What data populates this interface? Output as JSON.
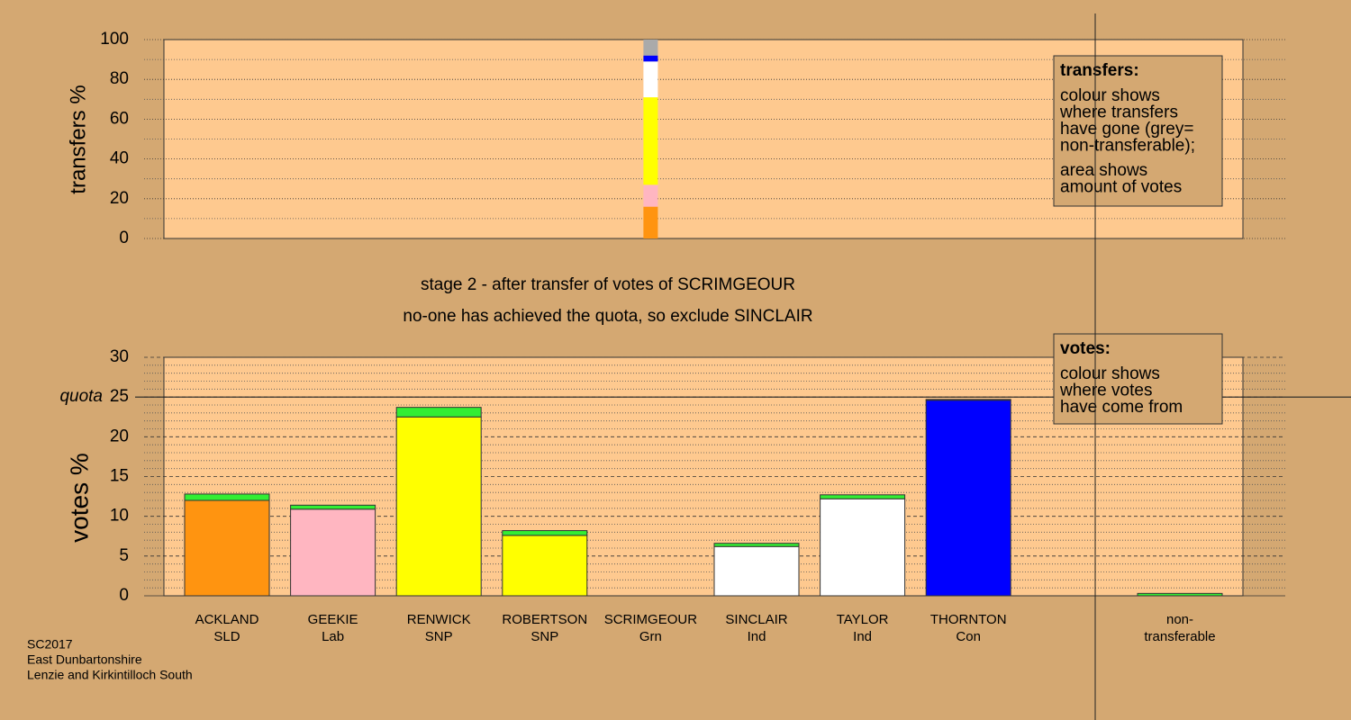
{
  "chart_data": [
    {
      "type": "stacked-bar",
      "ylabel": "transfers %",
      "ylim": [
        0,
        100
      ],
      "yticks": [
        0,
        20,
        40,
        60,
        80,
        100
      ],
      "minor_yticks": [
        10,
        30,
        50,
        70,
        90
      ],
      "series": [
        {
          "color": "#ff9410",
          "values": [
            16
          ]
        },
        {
          "color": "#ffb6c1",
          "values": [
            11
          ]
        },
        {
          "color": "#ffff00",
          "values": [
            44
          ]
        },
        {
          "color": "#ffffff",
          "values": [
            18
          ]
        },
        {
          "color": "#0000ff",
          "values": [
            3
          ]
        },
        {
          "color": "#aaaaaa",
          "values": [
            8
          ]
        }
      ],
      "legend": {
        "title": "transfers:",
        "text": [
          [
            "colour shows",
            "where transfers",
            "have gone (grey=",
            "non-transferable);"
          ],
          [
            "area shows",
            "amount of votes"
          ]
        ]
      }
    },
    {
      "type": "stacked-bar",
      "ylabel": "votes %",
      "ylim": [
        0,
        30
      ],
      "yticks": [
        0,
        5,
        10,
        15,
        20,
        25,
        30
      ],
      "minor_yticks": [
        1,
        2,
        3,
        4,
        6,
        7,
        8,
        9,
        11,
        12,
        13,
        14,
        16,
        17,
        18,
        19,
        21,
        22,
        23,
        24,
        26,
        27,
        28,
        29
      ],
      "quota": {
        "label": "quota",
        "value": 25
      },
      "categories": [
        "ACKLAND",
        "GEEKIE",
        "RENWICK",
        "ROBERTSON",
        "SCRIMGEOUR",
        "SINCLAIR",
        "TAYLOR",
        "THORNTON",
        null,
        "non-"
      ],
      "parties": [
        "SLD",
        "Lab",
        "SNP",
        "SNP",
        "Grn",
        "Ind",
        "Ind",
        "Con",
        null,
        "transferable"
      ],
      "series": [
        {
          "colors": [
            "#ff9410",
            "#ffb6c1",
            "#ffff00",
            "#ffff00",
            "#33ee33",
            "#ffffff",
            "#ffffff",
            "#0000ff",
            null,
            "#aaaaaa"
          ],
          "values": [
            12.0,
            10.9,
            22.5,
            7.6,
            0,
            6.2,
            12.2,
            24.6,
            null,
            0
          ]
        },
        {
          "color": "#33ee33",
          "values": [
            0.8,
            0.5,
            1.2,
            0.6,
            0,
            0.4,
            0.5,
            0.1,
            null,
            0.3
          ]
        }
      ],
      "legend": {
        "title": "votes:",
        "text": [
          [
            "colour shows",
            "where votes",
            "have come from"
          ]
        ]
      }
    }
  ],
  "stage_text": [
    "stage 2 - after transfer of votes of SCRIMGEOUR",
    "no-one has achieved the quota, so exclude SINCLAIR"
  ],
  "footer": [
    "SC2017",
    "East Dunbartonshire",
    "Lenzie and Kirkintilloch South"
  ]
}
